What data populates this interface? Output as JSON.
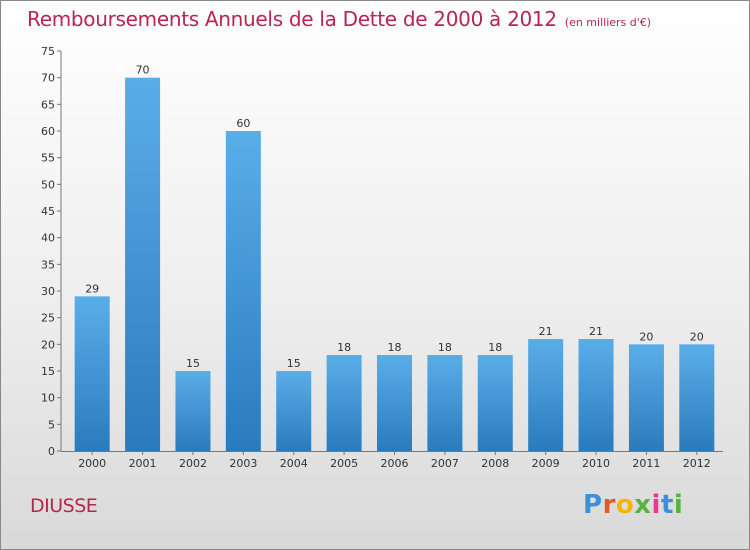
{
  "header": {
    "title": "Remboursements Annuels de la Dette de 2000 à 2012",
    "unit": "(en milliers d'€)"
  },
  "footer": {
    "commune": "DIUSSE",
    "logo_letters": [
      "P",
      "r",
      "o",
      "x",
      "i",
      "t",
      "i"
    ],
    "logo_colors": [
      "#3d8fd6",
      "#e55a1f",
      "#f4b400",
      "#57b33e",
      "#e93a8f",
      "#3d8fd6",
      "#57b33e"
    ]
  },
  "chart_data": {
    "type": "bar",
    "categories": [
      "2000",
      "2001",
      "2002",
      "2003",
      "2004",
      "2005",
      "2006",
      "2007",
      "2008",
      "2009",
      "2010",
      "2011",
      "2012"
    ],
    "values": [
      29,
      70,
      15,
      60,
      15,
      18,
      18,
      18,
      18,
      21,
      21,
      20,
      20
    ],
    "data_labels": [
      "29",
      "70",
      "15",
      "60",
      "15",
      "18",
      "18",
      "18",
      "18",
      "21",
      "21",
      "20",
      "20"
    ],
    "ylim": [
      0,
      75
    ],
    "yticks": [
      0,
      5,
      10,
      15,
      20,
      25,
      30,
      35,
      40,
      45,
      50,
      55,
      60,
      65,
      70,
      75
    ],
    "grid": false,
    "bar_color_top": "#5aaee8",
    "bar_color_bottom": "#2a7bbd"
  }
}
